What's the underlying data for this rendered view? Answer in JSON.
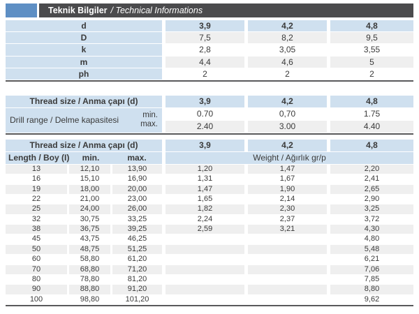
{
  "header": {
    "title_bold": "Teknik Bilgiler",
    "title_italic": "/ Technical Informations"
  },
  "colors": {
    "accent_blue": "#5e8fc4",
    "bar_dark": "#4b4b4d",
    "cell_blue": "#cfe0ef",
    "row_gray": "#efefef"
  },
  "dimensions_table": {
    "rows": [
      {
        "label": "d",
        "values": [
          "3,9",
          "4,2",
          "4,8"
        ]
      },
      {
        "label": "D",
        "values": [
          "7,5",
          "8,2",
          "9,5"
        ]
      },
      {
        "label": "k",
        "values": [
          "2,8",
          "3,05",
          "3,55"
        ]
      },
      {
        "label": "m",
        "values": [
          "4,4",
          "4,6",
          "5"
        ]
      },
      {
        "label": "ph",
        "values": [
          "2",
          "2",
          "2"
        ]
      }
    ]
  },
  "drill_table": {
    "thread_label": "Thread size / Anma çapı (d)",
    "columns": [
      "3,9",
      "4,2",
      "4,8"
    ],
    "range_label": "Drill range / Delme kapasitesi",
    "min_label": "min.",
    "max_label": "max.",
    "min_values": [
      "0.70",
      "0,70",
      "1.75"
    ],
    "max_values": [
      "2.40",
      "3.00",
      "4.40"
    ]
  },
  "length_table": {
    "thread_label": "Thread size / Anma çapı (d)",
    "columns": [
      "3,9",
      "4,2",
      "4,8"
    ],
    "length_label": "Length / Boy (I)",
    "min_label": "min.",
    "max_label": "max.",
    "weight_label": "Weight / Ağırlık gr/p",
    "rows": [
      {
        "length": "13",
        "min": "12,10",
        "max": "13,90",
        "w1": "1,20",
        "w2": "1,47",
        "w3": "2,20"
      },
      {
        "length": "16",
        "min": "15,10",
        "max": "16,90",
        "w1": "1,31",
        "w2": "1,67",
        "w3": "2,41"
      },
      {
        "length": "19",
        "min": "18,00",
        "max": "20,00",
        "w1": "1,47",
        "w2": "1,90",
        "w3": "2,65"
      },
      {
        "length": "22",
        "min": "21,00",
        "max": "23,00",
        "w1": "1,65",
        "w2": "2,14",
        "w3": "2,90"
      },
      {
        "length": "25",
        "min": "24,00",
        "max": "26,00",
        "w1": "1,82",
        "w2": "2,30",
        "w3": "3,25"
      },
      {
        "length": "32",
        "min": "30,75",
        "max": "33,25",
        "w1": "2,24",
        "w2": "2,37",
        "w3": "3,72"
      },
      {
        "length": "38",
        "min": "36,75",
        "max": "39,25",
        "w1": "2,59",
        "w2": "3,21",
        "w3": "4,30"
      },
      {
        "length": "45",
        "min": "43,75",
        "max": "46,25",
        "w1": "",
        "w2": "",
        "w3": "4,80"
      },
      {
        "length": "50",
        "min": "48,75",
        "max": "51,25",
        "w1": "",
        "w2": "",
        "w3": "5,48"
      },
      {
        "length": "60",
        "min": "58,80",
        "max": "61,20",
        "w1": "",
        "w2": "",
        "w3": "6,21"
      },
      {
        "length": "70",
        "min": "68,80",
        "max": "71,20",
        "w1": "",
        "w2": "",
        "w3": "7,06"
      },
      {
        "length": "80",
        "min": "78,80",
        "max": "81,20",
        "w1": "",
        "w2": "",
        "w3": "7,85"
      },
      {
        "length": "90",
        "min": "88,80",
        "max": "91,20",
        "w1": "",
        "w2": "",
        "w3": "8,80"
      },
      {
        "length": "100",
        "min": "98,80",
        "max": "101,20",
        "w1": "",
        "w2": "",
        "w3": "9,62"
      }
    ]
  }
}
